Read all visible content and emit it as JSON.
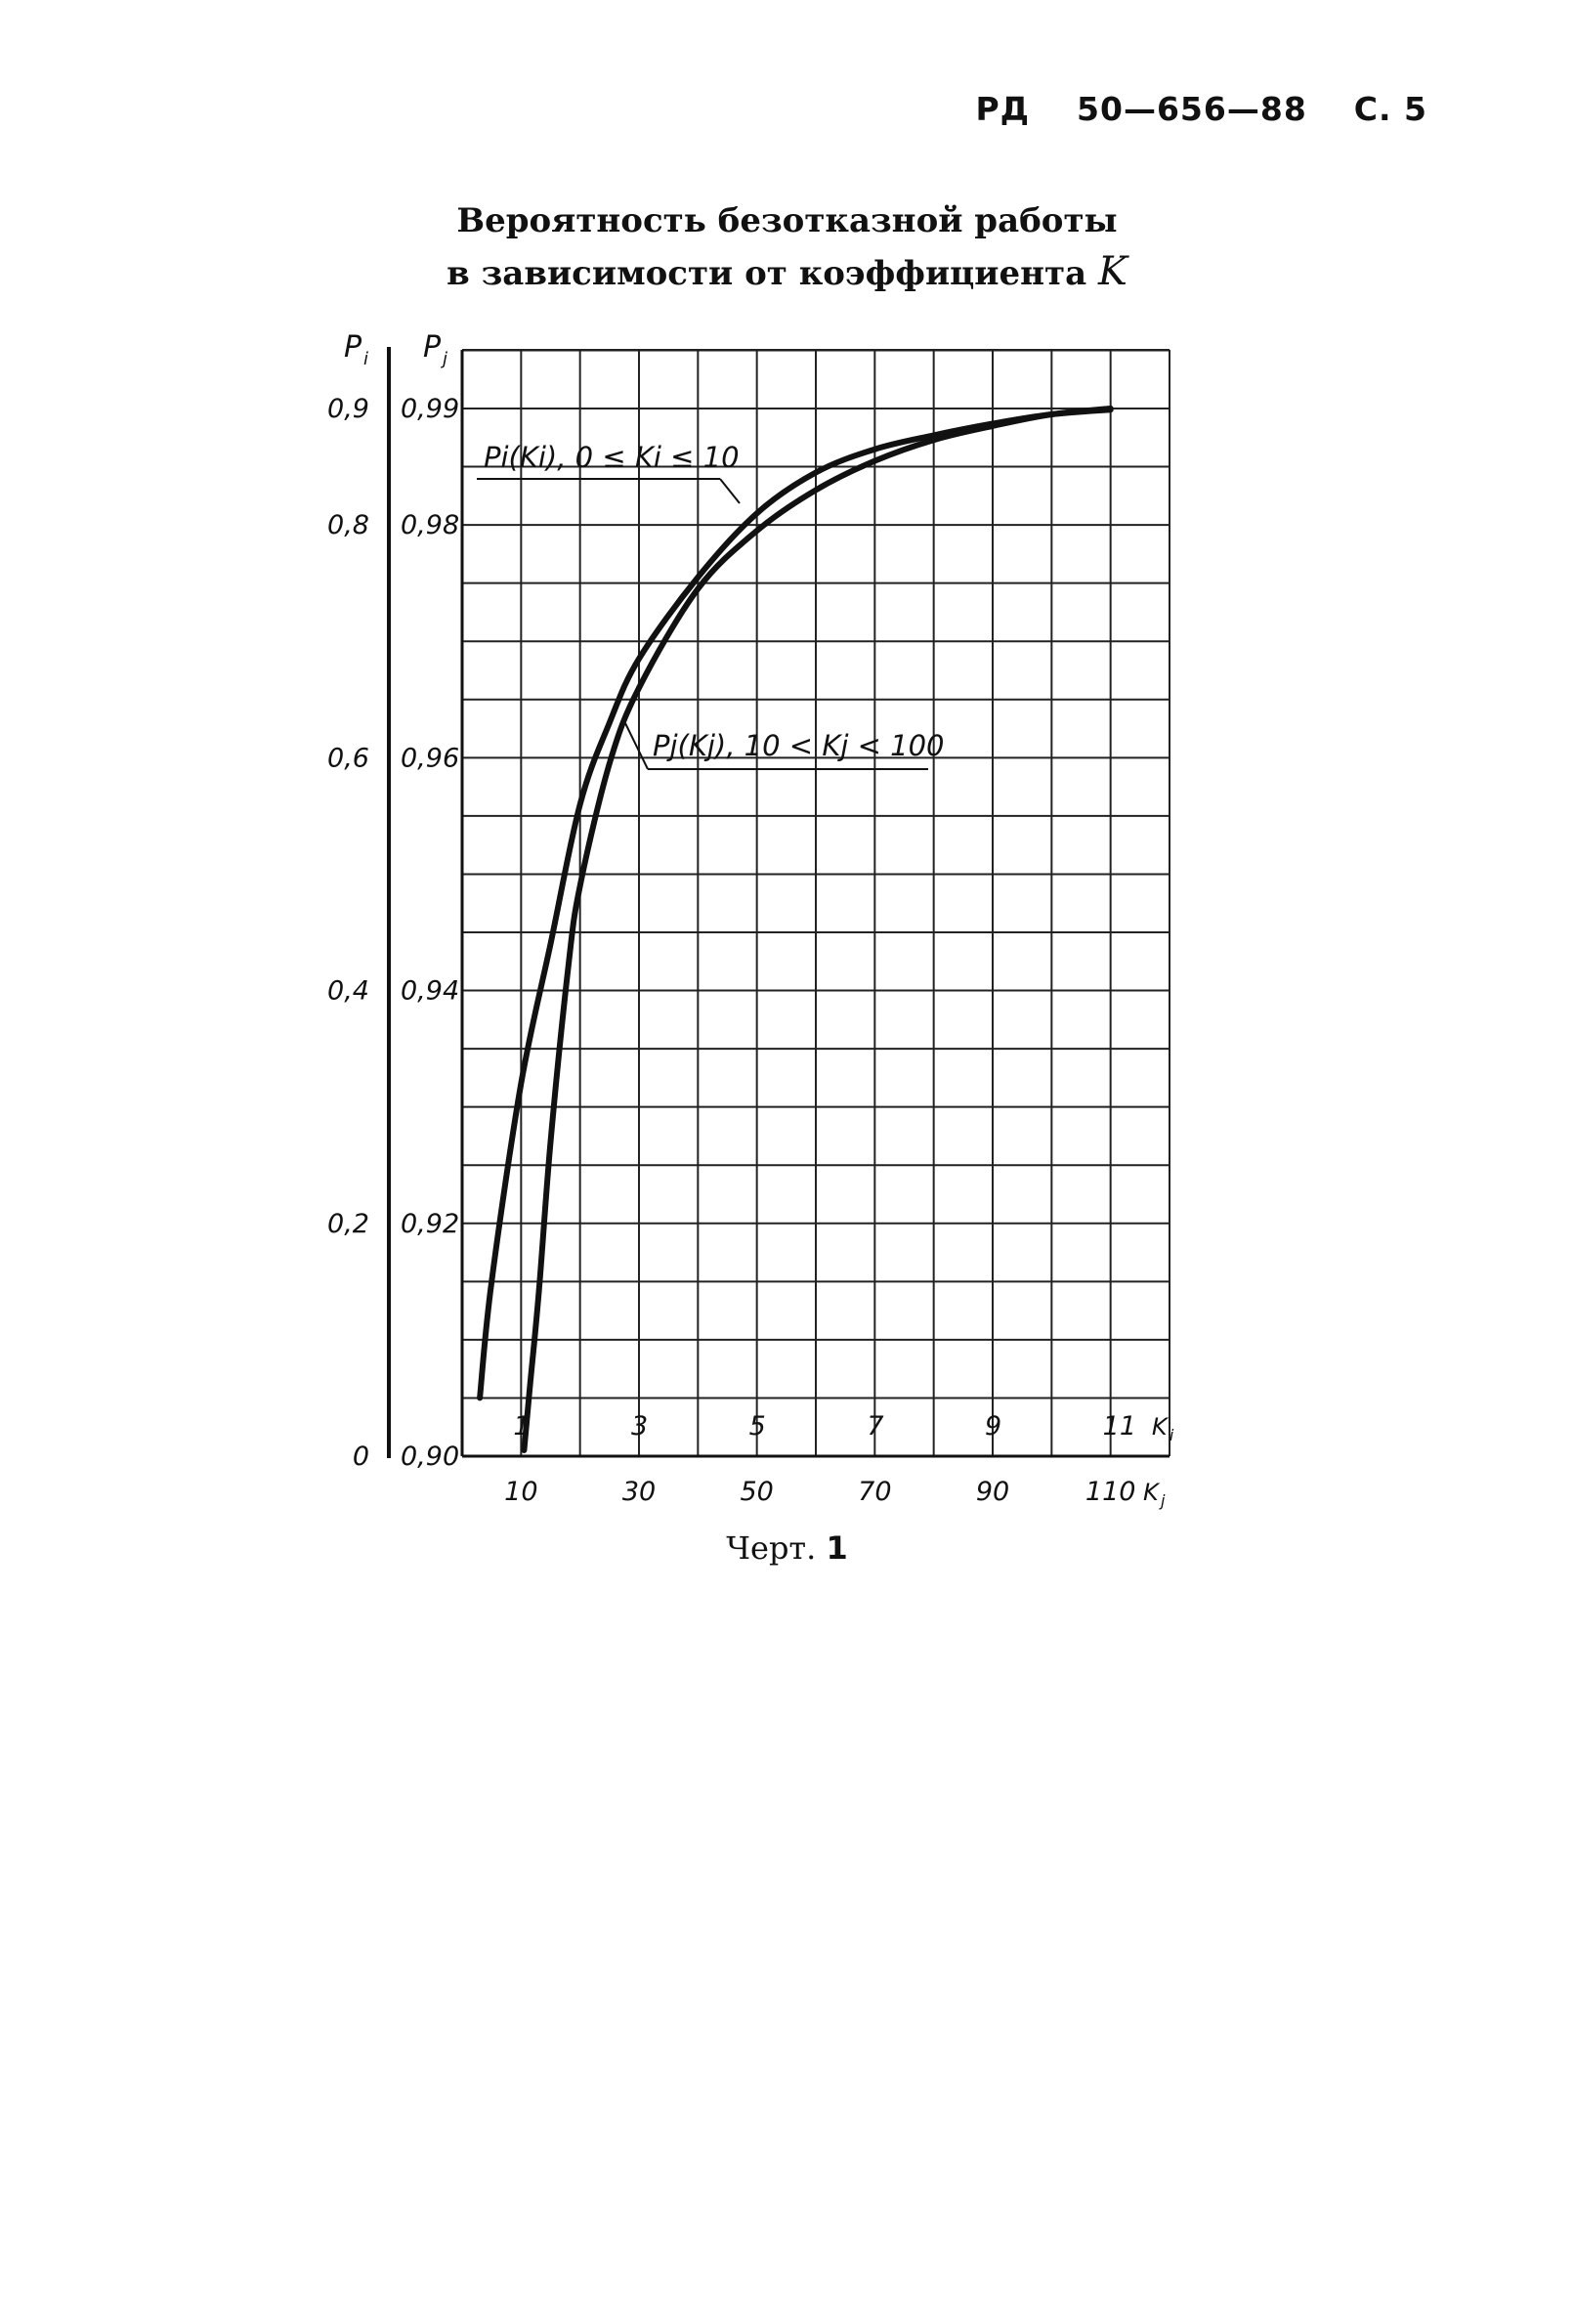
{
  "header": {
    "doc": "РД",
    "number": "50—656—88",
    "page": "С. 5"
  },
  "title": {
    "line1": "Вероятность безотказной работы",
    "line2": "в зависимости от коэффициента",
    "variable": "K"
  },
  "caption": {
    "label": "Черт.",
    "number": "1"
  },
  "chart_data": {
    "type": "line",
    "title": "Вероятность безотказной работы в зависимости от коэффициента K",
    "xlabel": "K_i / K_j",
    "ylabel": "P_i / P_j",
    "grid": true,
    "axes": {
      "y_left_label": "P",
      "y_left_subscript": "i",
      "y_right_label": "P",
      "y_right_subscript": "j",
      "x_top_label": "K",
      "x_top_subscript": "i",
      "x_bottom_label": "K",
      "x_bottom_subscript": "j",
      "y_left_ticks": [
        {
          "value": 0,
          "label": "0"
        },
        {
          "value": 0.2,
          "label": "0,2"
        },
        {
          "value": 0.4,
          "label": "0,4"
        },
        {
          "value": 0.6,
          "label": "0,6"
        },
        {
          "value": 0.8,
          "label": "0,8"
        },
        {
          "value": 0.9,
          "label": "0,9"
        }
      ],
      "y_right_ticks": [
        {
          "value": 0.9,
          "label": "0,90"
        },
        {
          "value": 0.92,
          "label": "0,92"
        },
        {
          "value": 0.94,
          "label": "0,94"
        },
        {
          "value": 0.96,
          "label": "0,96"
        },
        {
          "value": 0.98,
          "label": "0,98"
        },
        {
          "value": 0.99,
          "label": "0,99"
        }
      ],
      "x_top_ticks": [
        {
          "value": 1,
          "label": "1"
        },
        {
          "value": 3,
          "label": "3"
        },
        {
          "value": 5,
          "label": "5"
        },
        {
          "value": 7,
          "label": "7"
        },
        {
          "value": 9,
          "label": "9"
        },
        {
          "value": 11,
          "label": "11"
        }
      ],
      "x_bottom_ticks": [
        {
          "value": 10,
          "label": "10"
        },
        {
          "value": 30,
          "label": "30"
        },
        {
          "value": 50,
          "label": "50"
        },
        {
          "value": 70,
          "label": "70"
        },
        {
          "value": 90,
          "label": "90"
        },
        {
          "value": 110,
          "label": "110"
        }
      ],
      "xlim_i": [
        0,
        12
      ],
      "ylim_i": [
        0,
        0.9
      ],
      "xlim_j": [
        10,
        120
      ],
      "ylim_j": [
        0.9,
        0.99
      ]
    },
    "series": [
      {
        "name": "P_i(K_i), 0 ≤ K_i ≤ 10",
        "label_text": "Pi(Ki), 0 ≤ Ki ≤ 10",
        "x_axis": "K_i",
        "y_axis": "P_i",
        "points": [
          [
            0.3,
            0.05
          ],
          [
            0.5,
            0.15
          ],
          [
            1.0,
            0.32
          ],
          [
            1.5,
            0.44
          ],
          [
            2.0,
            0.56
          ],
          [
            2.5,
            0.63
          ],
          [
            3.0,
            0.685
          ],
          [
            4.0,
            0.755
          ],
          [
            5.0,
            0.81
          ],
          [
            6.0,
            0.845
          ],
          [
            7.0,
            0.865
          ],
          [
            8.0,
            0.877
          ],
          [
            9.0,
            0.887
          ],
          [
            10.0,
            0.895
          ],
          [
            11.0,
            0.899
          ]
        ]
      },
      {
        "name": "P_j(K_j), 10 < K_j < 100",
        "label_text": "Pj(Kj), 10 < Kj < 100",
        "x_axis": "K_j",
        "y_axis": "P_j",
        "points": [
          [
            10.5,
            0.9005
          ],
          [
            11.5,
            0.906
          ],
          [
            13,
            0.914
          ],
          [
            15,
            0.927
          ],
          [
            18,
            0.942
          ],
          [
            20,
            0.949
          ],
          [
            25,
            0.9595
          ],
          [
            30,
            0.966
          ],
          [
            40,
            0.9745
          ],
          [
            50,
            0.9795
          ],
          [
            60,
            0.983
          ],
          [
            70,
            0.9855
          ],
          [
            80,
            0.9873
          ],
          [
            90,
            0.9885
          ],
          [
            100,
            0.9895
          ],
          [
            110,
            0.99
          ]
        ]
      }
    ]
  }
}
